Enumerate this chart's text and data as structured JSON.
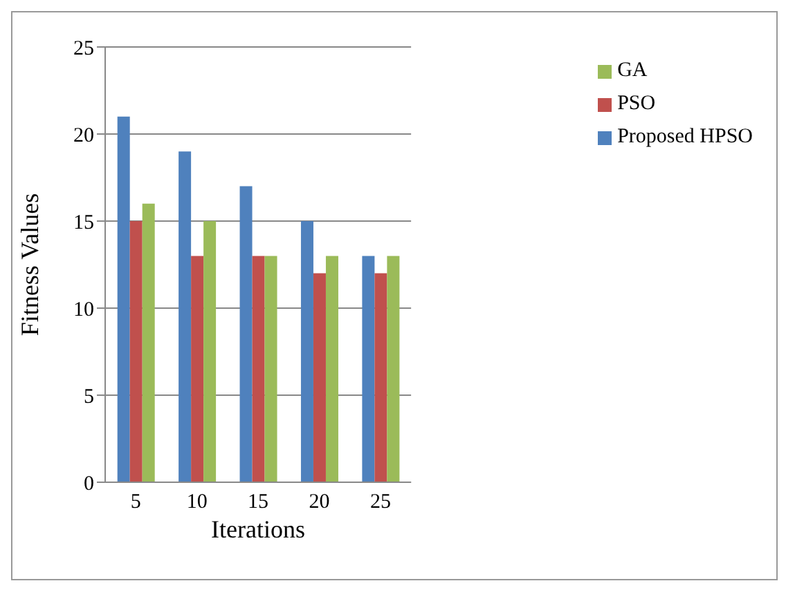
{
  "chart_data": {
    "type": "bar",
    "xlabel": "Iterations",
    "ylabel": "Fitness Values",
    "categories": [
      "5",
      "10",
      "15",
      "20",
      "25"
    ],
    "series": [
      {
        "name": "Proposed HPSO",
        "color": "#4f81bd",
        "values": [
          21,
          19,
          17,
          15,
          13
        ]
      },
      {
        "name": "PSO",
        "color": "#c0504d",
        "values": [
          15,
          13,
          13,
          12,
          12
        ]
      },
      {
        "name": "GA",
        "color": "#9bbb59",
        "values": [
          16,
          15,
          13,
          13,
          13
        ]
      }
    ],
    "ylim": [
      0,
      25
    ],
    "yticks": [
      0,
      5,
      10,
      15,
      20,
      25
    ],
    "grid": "y",
    "legend": "top right"
  }
}
